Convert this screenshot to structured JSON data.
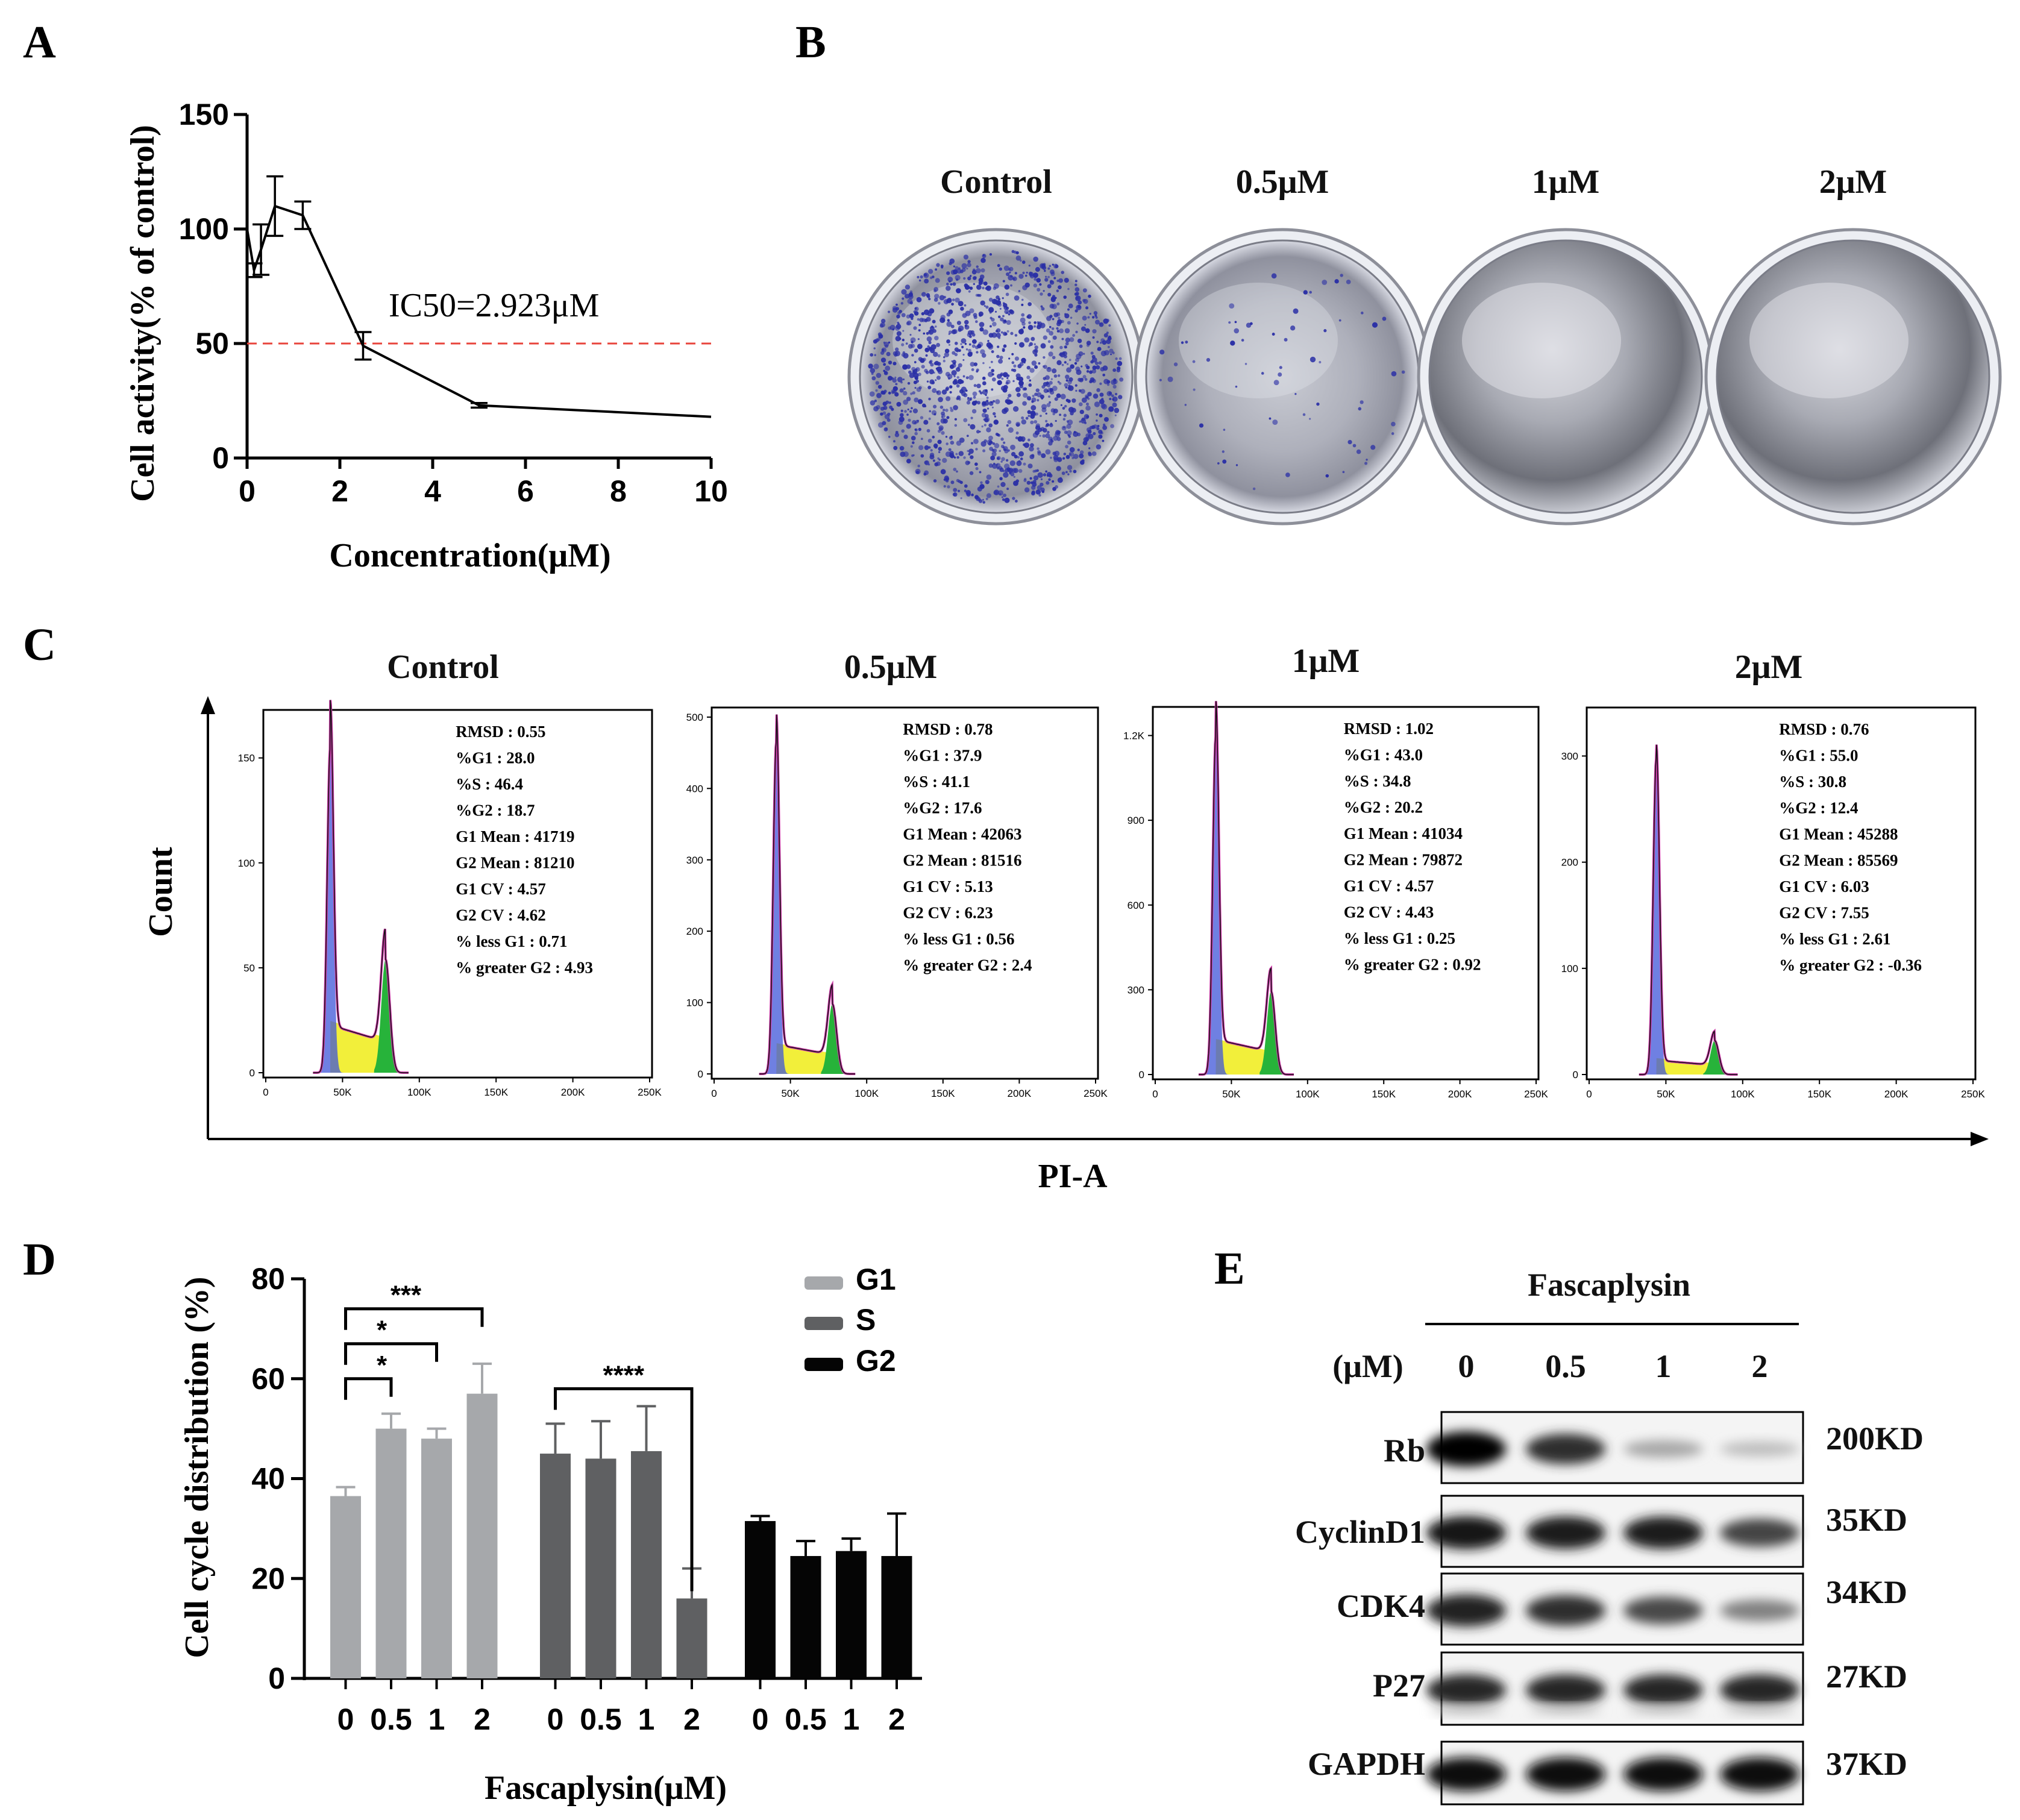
{
  "panel_labels": [
    "A",
    "B",
    "C",
    "D",
    "E"
  ],
  "chart_data": [
    {
      "panel": "A",
      "type": "line",
      "xlabel": "Concentration(μM)",
      "ylabel": "Cell activity(% of control)",
      "xlim": [
        0,
        10
      ],
      "ylim": [
        0,
        150
      ],
      "xticks": [
        0,
        2,
        4,
        6,
        8,
        10
      ],
      "yticks": [
        0,
        50,
        100,
        150
      ],
      "x": [
        0,
        0.15,
        0.3,
        0.6,
        1.2,
        2.5,
        5,
        10
      ],
      "values": [
        100,
        82,
        91,
        110,
        106,
        49,
        23,
        18
      ],
      "errors": [
        0,
        3,
        11,
        13,
        6,
        6,
        1,
        0
      ],
      "ic50_label": "IC50=2.923μM",
      "ic50_line_y": 50,
      "reference_line_color": "#e8453c"
    },
    {
      "panel": "C",
      "type": "area",
      "xlabel": "PI-A",
      "ylabel": "Count",
      "xticks": [
        "0",
        "50K",
        "100K",
        "150K",
        "200K",
        "250K"
      ],
      "samples": [
        {
          "title": "Control",
          "yticks": [
            "0",
            "50",
            "100",
            "150"
          ],
          "ymax": 170,
          "g1_peak": 155,
          "g2_peak": 54,
          "stats": [
            [
              "RMSD",
              "0.55"
            ],
            [
              "%G1",
              "28.0"
            ],
            [
              "%S",
              "46.4"
            ],
            [
              "%G2",
              "18.7"
            ],
            [
              "G1 Mean",
              "41719"
            ],
            [
              "G2 Mean",
              "81210"
            ],
            [
              "G1 CV",
              "4.57"
            ],
            [
              "G2 CV",
              "4.62"
            ],
            [
              "% less G1",
              "0.71"
            ],
            [
              "% greater G2",
              "4.93"
            ]
          ]
        },
        {
          "title": "0.5μM",
          "yticks": [
            "0",
            "100",
            "200",
            "300",
            "400",
            "500"
          ],
          "ymax": 505,
          "g1_peak": 465,
          "g2_peak": 98,
          "stats": [
            [
              "RMSD",
              "0.78"
            ],
            [
              "%G1",
              "37.9"
            ],
            [
              "%S",
              "41.1"
            ],
            [
              "%G2",
              "17.6"
            ],
            [
              "G1 Mean",
              "42063"
            ],
            [
              "G2 Mean",
              "81516"
            ],
            [
              "G1 CV",
              "5.13"
            ],
            [
              "G2 CV",
              "6.23"
            ],
            [
              "% less G1",
              "0.56"
            ],
            [
              "% greater G2",
              "2.4"
            ]
          ]
        },
        {
          "title": "1μM",
          "yticks": [
            "0",
            "300",
            "600",
            "900",
            "1.2K"
          ],
          "ymax": 1280,
          "g1_peak": 1200,
          "g2_peak": 295,
          "stats": [
            [
              "RMSD",
              "1.02"
            ],
            [
              "%G1",
              "43.0"
            ],
            [
              "%S",
              "34.8"
            ],
            [
              "%G2",
              "20.2"
            ],
            [
              "G1 Mean",
              "41034"
            ],
            [
              "G2 Mean",
              "79872"
            ],
            [
              "G1 CV",
              "4.57"
            ],
            [
              "G2 CV",
              "4.43"
            ],
            [
              "% less G1",
              "0.25"
            ],
            [
              "% greater G2",
              "0.92"
            ]
          ]
        },
        {
          "title": "2μM",
          "yticks": [
            "0",
            "100",
            "200",
            "300"
          ],
          "ymax": 340,
          "g1_peak": 298,
          "g2_peak": 32,
          "stats": [
            [
              "RMSD",
              "0.76"
            ],
            [
              "%G1",
              "55.0"
            ],
            [
              "%S",
              "30.8"
            ],
            [
              "%G2",
              "12.4"
            ],
            [
              "G1 Mean",
              "45288"
            ],
            [
              "G2 Mean",
              "85569"
            ],
            [
              "G1 CV",
              "6.03"
            ],
            [
              "G2 CV",
              "7.55"
            ],
            [
              "% less G1",
              "2.61"
            ],
            [
              "% greater G2",
              "-0.36"
            ]
          ]
        }
      ]
    },
    {
      "panel": "D",
      "type": "bar",
      "ylabel": "Cell cycle distribution (%)",
      "xlabel": "Fascaplysin(μM)",
      "ylim": [
        0,
        80
      ],
      "yticks": [
        0,
        20,
        40,
        60,
        80
      ],
      "categories": [
        "0",
        "0.5",
        "1",
        "2"
      ],
      "series": [
        {
          "name": "G1",
          "color": "#a6a8ab",
          "values": [
            36.5,
            50,
            48,
            57
          ],
          "errors": [
            1.8,
            3,
            2,
            6
          ]
        },
        {
          "name": "S",
          "color": "#5f6062",
          "values": [
            45,
            44,
            45.5,
            16
          ],
          "errors": [
            6,
            7.5,
            9,
            6
          ]
        },
        {
          "name": "G2",
          "color": "#050505",
          "values": [
            31.5,
            24.5,
            25.5,
            24.5
          ],
          "errors": [
            1,
            3,
            2.5,
            8.5
          ]
        }
      ],
      "significance": [
        {
          "series": 0,
          "from": 0,
          "to": 1,
          "label": "*",
          "y": 60
        },
        {
          "series": 0,
          "from": 0,
          "to": 2,
          "label": "*",
          "y": 67
        },
        {
          "series": 0,
          "from": 0,
          "to": 3,
          "label": "***",
          "y": 74
        },
        {
          "series": 1,
          "from": 0,
          "to": 3,
          "label": "****",
          "y": 58
        }
      ]
    }
  ],
  "colony_panel": {
    "labels": [
      "Control",
      "0.5μM",
      "1μM",
      "2μM"
    ],
    "colony_color": "#2a2fa6"
  },
  "western": {
    "title": "Fascaplysin",
    "unit_label": "(μM)",
    "lanes": [
      "0",
      "0.5",
      "1",
      "2"
    ],
    "proteins": [
      {
        "name": "Rb",
        "size": "200KD",
        "intensity": [
          1.0,
          0.82,
          0.28,
          0.18
        ]
      },
      {
        "name": "CyclinD1",
        "size": "35KD",
        "intensity": [
          0.92,
          0.9,
          0.9,
          0.72
        ]
      },
      {
        "name": "CDK4",
        "size": "34KD",
        "intensity": [
          0.88,
          0.82,
          0.7,
          0.45
        ]
      },
      {
        "name": "P27",
        "size": "27KD",
        "intensity": [
          0.85,
          0.85,
          0.85,
          0.85
        ]
      },
      {
        "name": "GAPDH",
        "size": "37KD",
        "intensity": [
          0.95,
          0.95,
          0.95,
          0.95
        ]
      }
    ]
  }
}
